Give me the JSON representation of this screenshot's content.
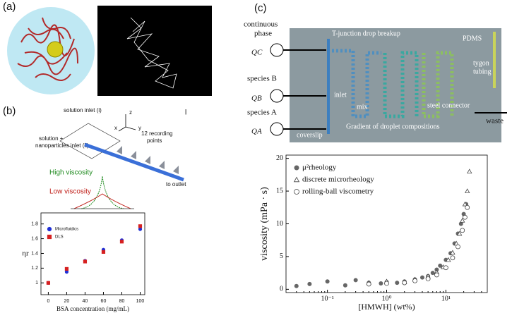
{
  "panel_labels": [
    "(a)",
    "(b)",
    "(c)"
  ],
  "panel_b": {
    "axes": [
      "z",
      "x",
      "y"
    ],
    "inlet_1": "solution inlet (i)",
    "inlet_2a": "solution +",
    "inlet_2b": "nanoparticles inlet (ii)",
    "points_a": "12 recording",
    "points_b": "points",
    "high": "High viscosity",
    "low": "Low viscosity",
    "outlet": "to outlet",
    "mark": "l"
  },
  "panel_c": {
    "continuous_a": "continuous",
    "continuous_b": "phase",
    "qc": "QC",
    "species_b": "species B",
    "qb": "QB",
    "species_a": "species A",
    "qa": "QA",
    "tjunction": "T-junction drop breakup",
    "pdms": "PDMS",
    "tygon_a": "tygon",
    "tygon_b": "tubing",
    "inlet": "inlet",
    "mix": "mix",
    "steel": "steel connector",
    "waste": "waste",
    "coverslip": "coverslip",
    "gradient": "Gradient of droplet compositions"
  },
  "chart_data": [
    {
      "type": "scatter",
      "x_label": "BSA concentration  (mg/mL)",
      "y_label": "ηr",
      "xlim": [
        -8,
        105
      ],
      "xticks": [
        0,
        20,
        40,
        60,
        80,
        100
      ],
      "ylim": [
        0.84,
        1.95
      ],
      "yticks": [
        1,
        1.2,
        1.4,
        1.6,
        1.8
      ],
      "log_x": false,
      "series": [
        {
          "name": "Microfluidics",
          "color": "#1f2fd6",
          "marker": "circle",
          "x": [
            0,
            20,
            40,
            60,
            80,
            100
          ],
          "values": [
            1.0,
            1.15,
            1.3,
            1.45,
            1.58,
            1.73
          ]
        },
        {
          "name": "DLS",
          "color": "#d62020",
          "marker": "square",
          "x": [
            0,
            20,
            40,
            60,
            80,
            100
          ],
          "values": [
            1.0,
            1.19,
            1.29,
            1.42,
            1.56,
            1.77
          ]
        }
      ]
    },
    {
      "type": "scatter",
      "x_label": "[HMWH] (wt%)",
      "y_label": "viscosity (mPa · s)",
      "xlim": [
        0.02,
        50
      ],
      "xticks": [
        {
          "value": 0.1,
          "label": "10⁻¹"
        },
        {
          "value": 1,
          "label": "10⁰"
        },
        {
          "value": 10,
          "label": "10¹"
        }
      ],
      "ylim": [
        -0.5,
        20.5
      ],
      "yticks": [
        0,
        5,
        10,
        15,
        20
      ],
      "log_x": true,
      "series": [
        {
          "name": "μ²rheology",
          "color": "#666666",
          "marker": "circle",
          "x": [
            0.03,
            0.05,
            0.1,
            0.2,
            0.3,
            0.5,
            0.8,
            1,
            1.5,
            2,
            3,
            4,
            5,
            6,
            7,
            8,
            10,
            12,
            14,
            16,
            18,
            20,
            22
          ],
          "values": [
            0.5,
            0.8,
            1.2,
            0.6,
            1.4,
            1,
            0.9,
            1.1,
            1,
            1.2,
            1.5,
            1.8,
            2,
            2.5,
            3,
            3.6,
            4.5,
            5.5,
            7,
            8.5,
            10,
            11.5,
            13
          ]
        },
        {
          "name": "discrete microrheology",
          "color": "#444444",
          "marker": "triangle",
          "x": [
            0.5,
            1,
            2,
            3,
            5,
            7,
            9,
            11,
            13,
            15,
            17,
            19,
            21,
            23,
            25
          ],
          "values": [
            1,
            1.2,
            1.1,
            1.5,
            2,
            2.6,
            3.4,
            4.5,
            5.6,
            7,
            8.5,
            10.5,
            13,
            15,
            18
          ]
        },
        {
          "name": "rolling-ball viscometry",
          "color": "#444444",
          "marker": "open-circle",
          "x": [
            0.5,
            1,
            2,
            3,
            5,
            7,
            10,
            13,
            16,
            19,
            21,
            23
          ],
          "values": [
            0.8,
            0.9,
            1,
            1.3,
            1.6,
            2.2,
            3.3,
            4.8,
            6.5,
            9,
            11,
            12.5
          ]
        }
      ]
    }
  ]
}
